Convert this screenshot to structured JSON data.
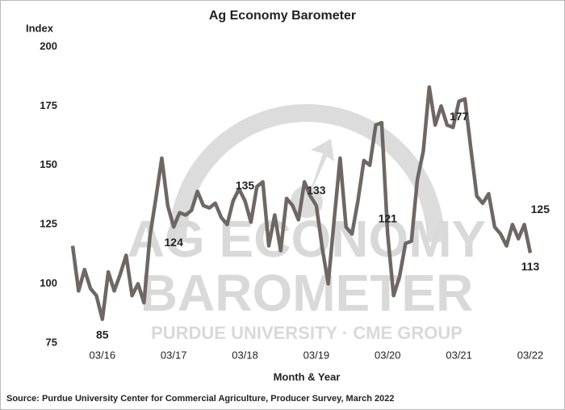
{
  "chart_data": {
    "type": "line",
    "title": "Ag Economy Barometer",
    "y_label": "Index",
    "x_label": "Month & Year",
    "source": "Source: Purdue University Center for Commercial Agriculture, Producer Survey, March 2022",
    "watermark": [
      "AG ECONOMY",
      "BAROMETER",
      "PURDUE UNIVERSITY · CME GROUP"
    ],
    "categories": [
      null,
      null,
      null,
      null,
      null,
      "03/16",
      null,
      null,
      null,
      null,
      null,
      null,
      null,
      null,
      null,
      null,
      null,
      "03/17",
      null,
      null,
      null,
      null,
      null,
      null,
      null,
      null,
      null,
      null,
      null,
      "03/18",
      null,
      null,
      null,
      null,
      null,
      null,
      null,
      null,
      null,
      null,
      null,
      "03/19",
      null,
      null,
      null,
      null,
      null,
      null,
      null,
      null,
      null,
      null,
      null,
      "03/20",
      null,
      null,
      null,
      null,
      null,
      null,
      null,
      null,
      null,
      null,
      null,
      "03/21",
      null,
      null,
      null,
      null,
      null,
      null,
      null,
      null,
      null,
      null,
      null,
      "03/22"
    ],
    "series": [
      {
        "name": "Ag Economy Barometer",
        "color": "#6e6764",
        "values": [
          116,
          97,
          106,
          98,
          95,
          85,
          105,
          97,
          104,
          112,
          95,
          100,
          92,
          120,
          136,
          153,
          133,
          124,
          130,
          129,
          131,
          139,
          133,
          132,
          134,
          128,
          125,
          135,
          140,
          135,
          126,
          141,
          143,
          116,
          129,
          114,
          136,
          133,
          127,
          143,
          137,
          133,
          115,
          100,
          127,
          153,
          124,
          121,
          135,
          152,
          150,
          167,
          168,
          121,
          95,
          103,
          117,
          118,
          144,
          156,
          183,
          167,
          175,
          167,
          166,
          177,
          178,
          157,
          137,
          134,
          138,
          124,
          121,
          116,
          125,
          119,
          125,
          113
        ],
        "value_labels": [
          null,
          null,
          null,
          null,
          null,
          "85",
          null,
          null,
          null,
          null,
          null,
          null,
          null,
          null,
          null,
          null,
          null,
          "124",
          null,
          null,
          null,
          null,
          null,
          null,
          null,
          null,
          null,
          null,
          null,
          "135",
          null,
          null,
          null,
          null,
          null,
          null,
          null,
          null,
          null,
          null,
          null,
          "133",
          null,
          null,
          null,
          null,
          null,
          null,
          null,
          null,
          null,
          null,
          null,
          "121",
          null,
          null,
          null,
          null,
          null,
          null,
          null,
          null,
          null,
          null,
          null,
          "177",
          null,
          null,
          null,
          null,
          null,
          null,
          null,
          null,
          null,
          null,
          "125",
          "113"
        ]
      }
    ],
    "ylim": [
      75,
      200
    ],
    "yticks": [
      75,
      100,
      125,
      150,
      175,
      200
    ],
    "grid": false
  }
}
